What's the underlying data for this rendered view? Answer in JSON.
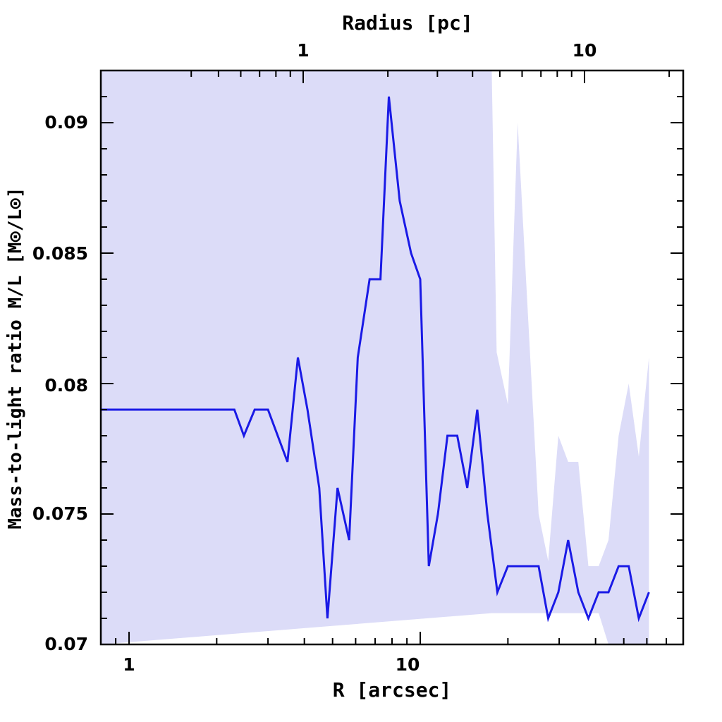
{
  "chart_data": {
    "type": "line",
    "xlabel": "R [arcsec]",
    "x2label": "Radius [pc]",
    "ylabel": "Mass-to-light ratio M/L [M⊙/L⊙]",
    "xscale": "log",
    "xlim": [
      0.8,
      80
    ],
    "ylim": [
      0.07,
      0.092
    ],
    "x_tick_labels": [
      "1",
      "10"
    ],
    "x2_tick_labels": [
      "1",
      "10"
    ],
    "y_tick_labels": [
      "0.07",
      "0.075",
      "0.08",
      "0.085",
      "0.09"
    ],
    "line_color": "#1a1ae6",
    "band_color": "#dcdcf8",
    "series": [
      {
        "x": [
          0.8,
          2.3,
          2.48,
          2.7,
          3.0,
          3.5,
          3.8,
          4.1,
          4.5,
          4.8,
          5.2,
          5.7,
          6.1,
          6.7,
          7.3,
          7.8,
          8.5,
          9.3,
          10.0,
          10.7,
          11.5,
          12.4,
          13.4,
          14.5,
          15.7,
          17.0,
          18.4,
          20.0,
          21.6,
          25.5,
          27.5,
          29.8,
          32.2,
          34.9,
          37.8,
          41.0,
          44.3,
          48.0,
          52.0,
          56.3,
          61.0
        ],
        "y": [
          0.079,
          0.079,
          0.078,
          0.079,
          0.079,
          0.077,
          0.081,
          0.079,
          0.076,
          0.071,
          0.076,
          0.074,
          0.081,
          0.084,
          0.084,
          0.091,
          0.087,
          0.085,
          0.084,
          0.073,
          0.075,
          0.078,
          0.078,
          0.076,
          0.079,
          0.075,
          0.072,
          0.073,
          0.073,
          0.073,
          0.071,
          0.072,
          0.074,
          0.072,
          0.071,
          0.072,
          0.072,
          0.073,
          0.073,
          0.071,
          0.072
        ]
      }
    ],
    "band": {
      "x": [
        0.8,
        17.6,
        18.3,
        20.0,
        21.6,
        25.5,
        27.5,
        29.8,
        32.2,
        34.9,
        37.8,
        41.0,
        44.3,
        48.0,
        52.0,
        56.3,
        61.0
      ],
      "upper": [
        0.092,
        0.092,
        0.0812,
        0.0792,
        0.09,
        0.075,
        0.0732,
        0.078,
        0.077,
        0.077,
        0.073,
        0.073,
        0.074,
        0.078,
        0.08,
        0.0772,
        0.081
      ],
      "lower": [
        0.07,
        0.0712,
        0.0712,
        0.0712,
        0.0712,
        0.0712,
        0.0712,
        0.0712,
        0.0712,
        0.0712,
        0.0712,
        0.0712,
        0.07,
        0.07,
        0.07,
        0.07,
        0.07
      ]
    }
  }
}
